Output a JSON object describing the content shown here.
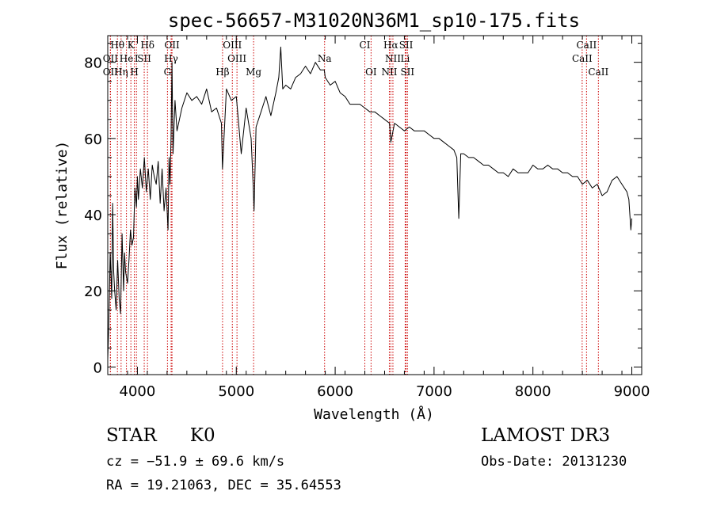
{
  "chart_data": {
    "type": "line",
    "title": "spec-56657-M31020N36M1_sp10-175.fits",
    "xlabel": "Wavelength (Å)",
    "ylabel": "Flux (relative)",
    "xlim": [
      3700,
      9100
    ],
    "ylim": [
      -2,
      87
    ],
    "x_ticks": [
      {
        "value": 4000,
        "label": "4000"
      },
      {
        "value": 5000,
        "label": "5000"
      },
      {
        "value": 6000,
        "label": "6000"
      },
      {
        "value": 7000,
        "label": "7000"
      },
      {
        "value": 8000,
        "label": "8000"
      },
      {
        "value": 9000,
        "label": "9000"
      }
    ],
    "y_ticks": [
      {
        "value": 0,
        "label": "0"
      },
      {
        "value": 20,
        "label": "20"
      },
      {
        "value": 40,
        "label": "40"
      },
      {
        "value": 60,
        "label": "60"
      },
      {
        "value": 80,
        "label": "80"
      }
    ],
    "line_color": "#000000",
    "marker_color": "#cc0000",
    "series": [
      {
        "name": "spectrum",
        "x": [
          3700,
          3710,
          3725,
          3740,
          3750,
          3760,
          3770,
          3785,
          3800,
          3815,
          3830,
          3845,
          3860,
          3870,
          3880,
          3900,
          3915,
          3930,
          3945,
          3960,
          3975,
          3990,
          4000,
          4010,
          4030,
          4050,
          4070,
          4090,
          4110,
          4130,
          4150,
          4170,
          4190,
          4210,
          4230,
          4250,
          4270,
          4290,
          4310,
          4320,
          4330,
          4340,
          4350,
          4360,
          4380,
          4400,
          4450,
          4500,
          4550,
          4600,
          4650,
          4700,
          4750,
          4800,
          4850,
          4860,
          4900,
          4950,
          5000,
          5050,
          5100,
          5150,
          5170,
          5180,
          5200,
          5250,
          5300,
          5350,
          5400,
          5430,
          5450,
          5470,
          5500,
          5550,
          5600,
          5650,
          5700,
          5750,
          5800,
          5850,
          5890,
          5900,
          5950,
          6000,
          6050,
          6100,
          6150,
          6200,
          6250,
          6300,
          6350,
          6400,
          6450,
          6500,
          6550,
          6563,
          6600,
          6650,
          6700,
          6750,
          6800,
          6850,
          6900,
          6950,
          7000,
          7050,
          7100,
          7150,
          7200,
          7230,
          7250,
          7270,
          7300,
          7350,
          7400,
          7450,
          7500,
          7550,
          7600,
          7650,
          7700,
          7750,
          7800,
          7850,
          7900,
          7950,
          8000,
          8050,
          8100,
          8150,
          8200,
          8250,
          8300,
          8350,
          8400,
          8450,
          8500,
          8550,
          8600,
          8650,
          8700,
          8750,
          8800,
          8850,
          8900,
          8950,
          8970,
          8990,
          9000
        ],
        "y": [
          2,
          10,
          30,
          18,
          43,
          25,
          20,
          15,
          28,
          18,
          14,
          35,
          20,
          30,
          25,
          22,
          28,
          36,
          32,
          34,
          47,
          42,
          50,
          44,
          52,
          47,
          55,
          46,
          52,
          44,
          53,
          50,
          48,
          54,
          43,
          52,
          41,
          47,
          36,
          55,
          48,
          60,
          80,
          56,
          70,
          62,
          68,
          72,
          70,
          71,
          69,
          73,
          67,
          68,
          64,
          52,
          73,
          70,
          71,
          56,
          68,
          60,
          48,
          41,
          63,
          67,
          71,
          66,
          72,
          76,
          84,
          73,
          74,
          73,
          76,
          77,
          79,
          77,
          80,
          78,
          78,
          76,
          74,
          75,
          72,
          71,
          69,
          69,
          69,
          68,
          67,
          67,
          66,
          65,
          64,
          59,
          64,
          63,
          62,
          63,
          62,
          62,
          62,
          61,
          60,
          60,
          59,
          58,
          57,
          55,
          39,
          56,
          56,
          55,
          55,
          54,
          53,
          53,
          52,
          51,
          51,
          50,
          52,
          51,
          51,
          51,
          53,
          52,
          52,
          53,
          52,
          52,
          51,
          51,
          50,
          50,
          48,
          49,
          47,
          48,
          45,
          46,
          49,
          50,
          48,
          46,
          44,
          36,
          39
        ]
      }
    ],
    "lines": [
      {
        "label": "Hθ",
        "x": 3798,
        "row": 1
      },
      {
        "label": "K",
        "x": 3934,
        "row": 1
      },
      {
        "label": "Hδ",
        "x": 4102,
        "row": 1
      },
      {
        "label": "OII",
        "x": 4350,
        "row": 1
      },
      {
        "label": "OIII",
        "x": 4960,
        "row": 1
      },
      {
        "label": "CI",
        "x": 6300,
        "row": 1
      },
      {
        "label": "Hα",
        "x": 6563,
        "row": 1
      },
      {
        "label": "SII",
        "x": 6717,
        "row": 1
      },
      {
        "label": "CaII",
        "x": 8542,
        "row": 1
      },
      {
        "label": "OII",
        "x": 3727,
        "row": 2
      },
      {
        "label": "He",
        "x": 3889,
        "row": 2
      },
      {
        "label": "I",
        "x": 3990,
        "row": 2
      },
      {
        "label": "SII",
        "x": 4069,
        "row": 2
      },
      {
        "label": "Hγ",
        "x": 4341,
        "row": 2
      },
      {
        "label": "OIII",
        "x": 5007,
        "row": 2
      },
      {
        "label": "Na",
        "x": 5893,
        "row": 2
      },
      {
        "label": "NII",
        "x": 6584,
        "row": 2
      },
      {
        "label": "Li",
        "x": 6708,
        "row": 2
      },
      {
        "label": "CaII",
        "x": 8498,
        "row": 2
      },
      {
        "label": "OII",
        "x": 3727,
        "row": 3
      },
      {
        "label": "Hη",
        "x": 3835,
        "row": 3
      },
      {
        "label": "H",
        "x": 3969,
        "row": 3
      },
      {
        "label": "G",
        "x": 4304,
        "row": 3
      },
      {
        "label": "Hβ",
        "x": 4861,
        "row": 3
      },
      {
        "label": "Mg",
        "x": 5175,
        "row": 3
      },
      {
        "label": "OI",
        "x": 6363,
        "row": 3
      },
      {
        "label": "NII",
        "x": 6548,
        "row": 3
      },
      {
        "label": "SII",
        "x": 6731,
        "row": 3
      },
      {
        "label": "CaII",
        "x": 8662,
        "row": 3
      }
    ]
  },
  "info": {
    "class": "STAR",
    "subclass": "K0",
    "survey": "LAMOST DR3",
    "redshift": "cz = −51.9 ± 69.6 km/s",
    "obs_date": "Obs-Date: 20131230",
    "coords": "RA =  19.21063, DEC =  35.64553"
  }
}
